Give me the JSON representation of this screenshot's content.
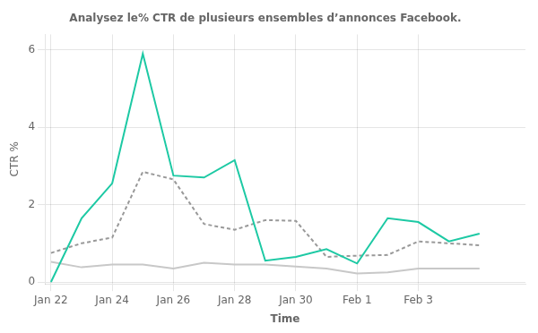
{
  "chart_data": {
    "type": "line",
    "title": "Analysez le% CTR de plusieurs ensembles d’annonces Facebook.",
    "xlabel": "Time",
    "ylabel": "CTR %",
    "x": [
      0,
      1,
      2,
      3,
      4,
      5,
      6,
      7,
      8,
      9,
      10,
      11,
      12,
      13,
      14
    ],
    "series": [
      {
        "color": "#1dc9a4",
        "line_style": "solid",
        "values": [
          0.0,
          1.65,
          2.55,
          5.9,
          2.75,
          2.7,
          3.15,
          0.55,
          0.65,
          0.85,
          0.48,
          1.65,
          1.55,
          1.05,
          1.25
        ]
      },
      {
        "color": "#999999",
        "line_style": "dashed",
        "values": [
          0.75,
          1.0,
          1.15,
          2.85,
          2.65,
          1.5,
          1.35,
          1.6,
          1.58,
          0.65,
          0.68,
          0.7,
          1.05,
          1.0,
          0.95
        ]
      },
      {
        "color": "#c8c8c8",
        "line_style": "solid",
        "values": [
          0.52,
          0.38,
          0.45,
          0.45,
          0.35,
          0.5,
          0.45,
          0.45,
          0.4,
          0.35,
          0.22,
          0.25,
          0.35,
          0.35,
          0.35
        ]
      }
    ],
    "xlim": [
      -0.2,
      15.5
    ],
    "xticks": [
      {
        "value": 0,
        "label": "Jan 22"
      },
      {
        "value": 2,
        "label": "Jan 24"
      },
      {
        "value": 4,
        "label": "Jan 26"
      },
      {
        "value": 6,
        "label": "Jan 28"
      },
      {
        "value": 8,
        "label": "Jan 30"
      },
      {
        "value": 10,
        "label": "Feb 1"
      },
      {
        "value": 12,
        "label": "Feb 3"
      }
    ],
    "ylim": [
      -0.05,
      6.4
    ],
    "yticks": [
      0,
      2,
      4,
      6
    ],
    "grid": true
  }
}
